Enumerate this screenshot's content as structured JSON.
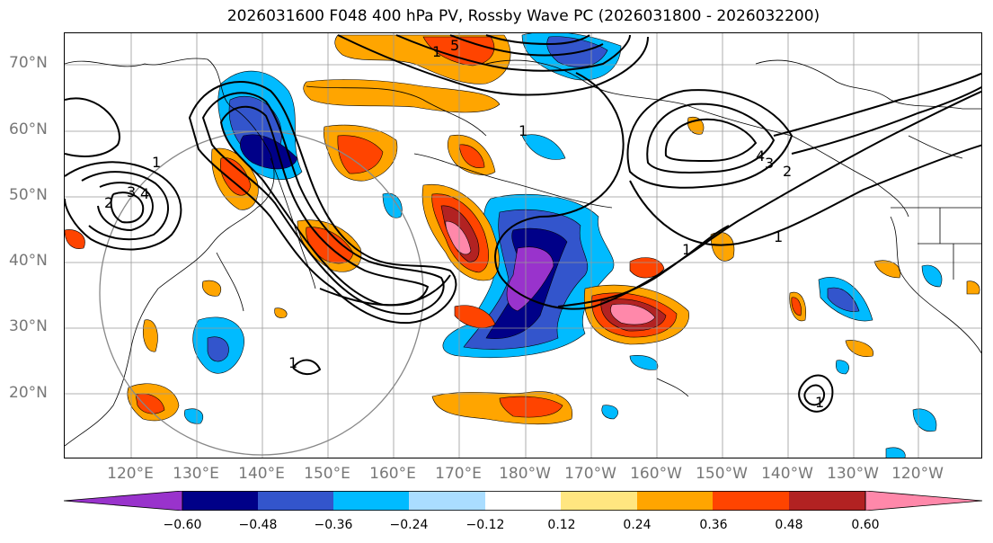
{
  "title": "2026031600 F048 400 hPa PV, Rossby Wave PC (2026031800 - 2026032200)",
  "lat_labels": [
    "70°N",
    "60°N",
    "50°N",
    "40°N",
    "30°N",
    "20°N"
  ],
  "lon_labels": [
    "120°E",
    "130°E",
    "140°E",
    "150°E",
    "160°E",
    "170°E",
    "180°W",
    "170°W",
    "160°W",
    "150°W",
    "140°W",
    "130°W",
    "120°W"
  ],
  "colorbar": {
    "colors": [
      "#9933cc",
      "#000088",
      "#3355cc",
      "#00bbff",
      "#aaddff",
      "#ffffff",
      "#ffe680",
      "#ffa500",
      "#ff4400",
      "#b22222",
      "#ff88aa"
    ],
    "tick_labels": [
      "−0.60",
      "−0.48",
      "−0.36",
      "−0.24",
      "−0.12",
      "0.12",
      "0.24",
      "0.36",
      "0.48",
      "0.60"
    ]
  },
  "contour_labels": [
    "1",
    "2",
    "3",
    "4",
    "5",
    "1",
    "2",
    "4",
    "3",
    "1",
    "1",
    "1",
    "1",
    "1"
  ]
}
